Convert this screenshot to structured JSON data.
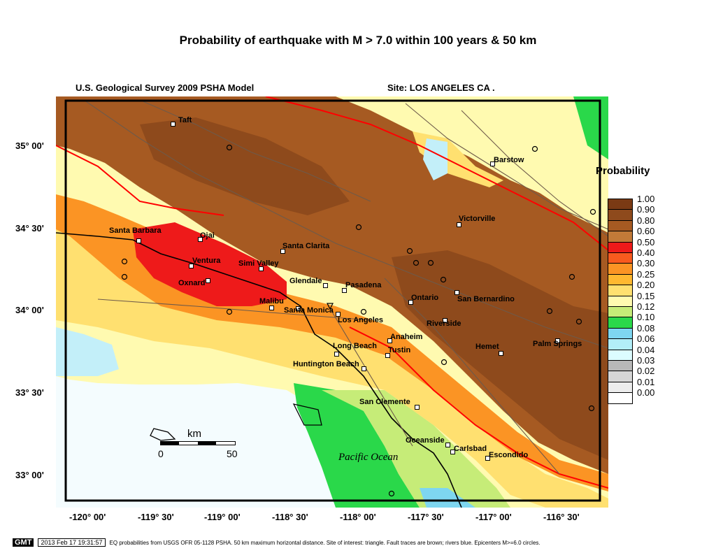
{
  "title": "Probability of earthquake with M > 7.0 within 100 years & 50 km",
  "model_label": "U.S. Geological Survey 2009 PSHA Model",
  "site_label": "Site: LOS  ANGELES CA .",
  "legend": {
    "title": "Probability",
    "levels": [
      "1.00",
      "0.90",
      "0.80",
      "0.60",
      "0.50",
      "0.40",
      "0.30",
      "0.25",
      "0.20",
      "0.15",
      "0.12",
      "0.10",
      "0.08",
      "0.06",
      "0.04",
      "0.03",
      "0.02",
      "0.01",
      "0.00"
    ],
    "colors": [
      "#7a3a14",
      "#8e4a1c",
      "#a65a22",
      "#c27a38",
      "#ee1a1a",
      "#f85a1e",
      "#fb9424",
      "#ffb830",
      "#ffe070",
      "#fffab0",
      "#c6ec78",
      "#2ad84a",
      "#7ed6f0",
      "#b2eef8",
      "#dcfcff",
      "#b8b8b8",
      "#d6d6d6",
      "#ececec",
      "#ffffff"
    ]
  },
  "lat_labels": [
    "35° 00'",
    "34° 30'",
    "34° 00'",
    "33° 30'",
    "33° 00'"
  ],
  "lon_labels": [
    "-120° 00'",
    "-119° 30'",
    "-119° 00'",
    "-118° 30'",
    "-118° 00'",
    "-117° 30'",
    "-117° 00'",
    "-116° 30'"
  ],
  "cities": [
    "Taft",
    "Barstow",
    "Victorville",
    "Santa Barbara",
    "Ojai",
    "Santa Clarita",
    "Ventura",
    "Simi Valley",
    "Oxnard",
    "Glendale",
    "Pasadena",
    "Malibu",
    "Santa Monica",
    "Los Angeles",
    "Ontario",
    "San Bernardino",
    "Riverside",
    "Anaheim",
    "Tustin",
    "Long Beach",
    "Huntington Beach",
    "Hemet",
    "Palm Springs",
    "San Clemente",
    "Oceanside",
    "Carlsbad",
    "Escondido"
  ],
  "ocean_label": "Pacific Ocean",
  "scale_bar": {
    "unit": "km",
    "start": "0",
    "end": "50"
  },
  "footer": {
    "badge": "GMT",
    "date": "2013 Feb 17 19:31:57",
    "note": "EQ probabilities from USGS OFR 05-1128 PSHA. 50 km maximum horizontal distance. Site of interest: triangle. Fault traces are brown; rivers blue. Epicenters M>=6.0 circles."
  }
}
